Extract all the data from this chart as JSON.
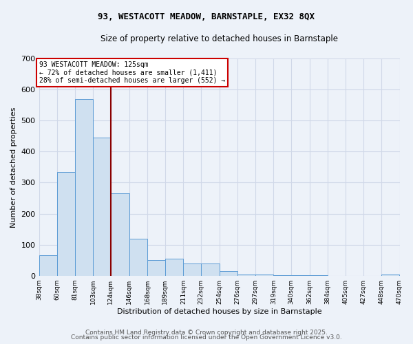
{
  "title1": "93, WESTACOTT MEADOW, BARNSTAPLE, EX32 8QX",
  "title2": "Size of property relative to detached houses in Barnstaple",
  "xlabel": "Distribution of detached houses by size in Barnstaple",
  "ylabel": "Number of detached properties",
  "footer1": "Contains HM Land Registry data © Crown copyright and database right 2025.",
  "footer2": "Contains public sector information licensed under the Open Government Licence v3.0.",
  "annotation_line1": "93 WESTACOTT MEADOW: 125sqm",
  "annotation_line2": "← 72% of detached houses are smaller (1,411)",
  "annotation_line3": "28% of semi-detached houses are larger (552) →",
  "vline_x": 124,
  "bin_edges": [
    38,
    60,
    81,
    103,
    124,
    146,
    168,
    189,
    211,
    232,
    254,
    276,
    297,
    319,
    340,
    362,
    384,
    405,
    427,
    448,
    470
  ],
  "bar_heights": [
    65,
    335,
    570,
    445,
    265,
    120,
    50,
    55,
    40,
    40,
    15,
    3,
    3,
    1,
    1,
    1,
    0,
    0,
    0,
    3
  ],
  "bar_face_color": "#cfe0f0",
  "bar_edge_color": "#5b9bd5",
  "vline_color": "#8b0000",
  "grid_color": "#d0d8e8",
  "bg_color": "#edf2f9",
  "plot_bg_color": "#edf2f9",
  "annotation_box_color": "#ffffff",
  "annotation_box_edge": "#cc0000",
  "ylim": [
    0,
    700
  ],
  "yticks": [
    0,
    100,
    200,
    300,
    400,
    500,
    600,
    700
  ],
  "title1_fontsize": 9,
  "title2_fontsize": 8.5,
  "xlabel_fontsize": 8,
  "ylabel_fontsize": 8,
  "xtick_fontsize": 6.5,
  "ytick_fontsize": 8,
  "annotation_fontsize": 7,
  "footer_fontsize": 6.5
}
